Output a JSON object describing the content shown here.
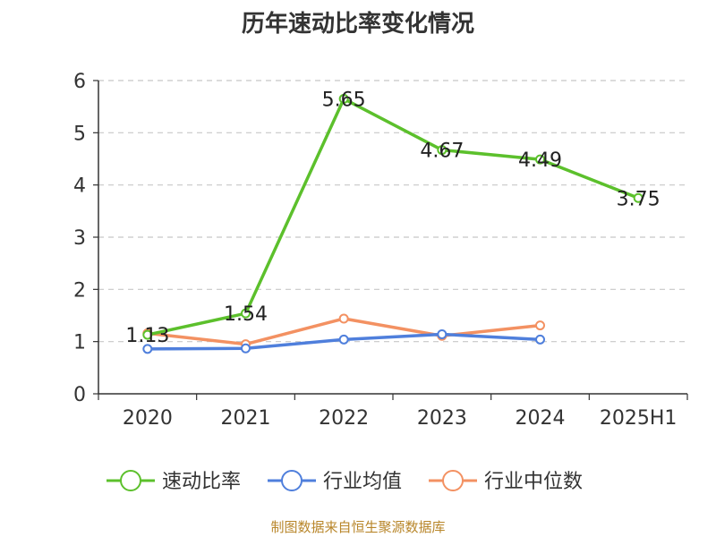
{
  "chart_data": {
    "type": "line",
    "title": "历年速动比率变化情况",
    "categories": [
      "2020",
      "2021",
      "2022",
      "2023",
      "2024",
      "2025H1"
    ],
    "ylim": [
      0,
      6
    ],
    "yticks": [
      "0",
      "1",
      "2",
      "3",
      "4",
      "5",
      "6"
    ],
    "grid": true,
    "legend_position": "bottom",
    "series": [
      {
        "name": "速动比率",
        "color": "#5cc02c",
        "values": [
          1.13,
          1.54,
          5.65,
          4.67,
          4.49,
          3.75
        ],
        "labels": [
          "1.13",
          "1.54",
          "5.65",
          "4.67",
          "4.49",
          "3.75"
        ]
      },
      {
        "name": "行业均值",
        "color": "#4f7fdc",
        "values": [
          0.86,
          0.87,
          1.04,
          1.14,
          1.04,
          null
        ]
      },
      {
        "name": "行业中位数",
        "color": "#f39162",
        "values": [
          1.16,
          0.95,
          1.44,
          1.11,
          1.31,
          null
        ]
      }
    ]
  },
  "source_note": "制图数据来自恒生聚源数据库"
}
